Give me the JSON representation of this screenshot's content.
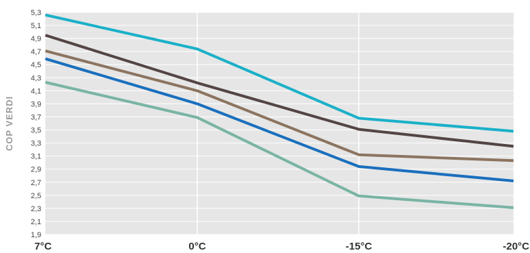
{
  "chart_data": {
    "type": "line",
    "title": "",
    "xlabel": "",
    "ylabel": "COP VERDI",
    "categories": [
      "7°C",
      "0°C",
      "-15°C",
      "-20°C"
    ],
    "ylim": [
      1.9,
      5.3
    ],
    "yticks": [
      "1,9",
      "2,1",
      "2,3",
      "2,5",
      "2,7",
      "2,9",
      "3,1",
      "3,3",
      "3,5",
      "3,7",
      "3,9",
      "4,1",
      "4,3",
      "4,5",
      "4,7",
      "4,9",
      "5,1",
      "5,3"
    ],
    "ytick_values": [
      1.9,
      2.1,
      2.3,
      2.5,
      2.7,
      2.9,
      3.1,
      3.3,
      3.5,
      3.7,
      3.9,
      4.1,
      4.3,
      4.5,
      4.7,
      4.9,
      5.1,
      5.3
    ],
    "grid": true,
    "legend": "none",
    "plot_background": "#e6e6e6",
    "series": [
      {
        "color": "#1ab0c8",
        "values": [
          5.26,
          4.74,
          3.68,
          3.48
        ]
      },
      {
        "color": "#544545",
        "values": [
          4.95,
          4.22,
          3.51,
          3.25
        ]
      },
      {
        "color": "#8c7460",
        "values": [
          4.71,
          4.1,
          3.12,
          3.03
        ]
      },
      {
        "color": "#1a6fbd",
        "values": [
          4.59,
          3.9,
          2.94,
          2.72
        ]
      },
      {
        "color": "#7ab4a4",
        "values": [
          4.23,
          3.69,
          2.49,
          2.31
        ]
      }
    ]
  }
}
